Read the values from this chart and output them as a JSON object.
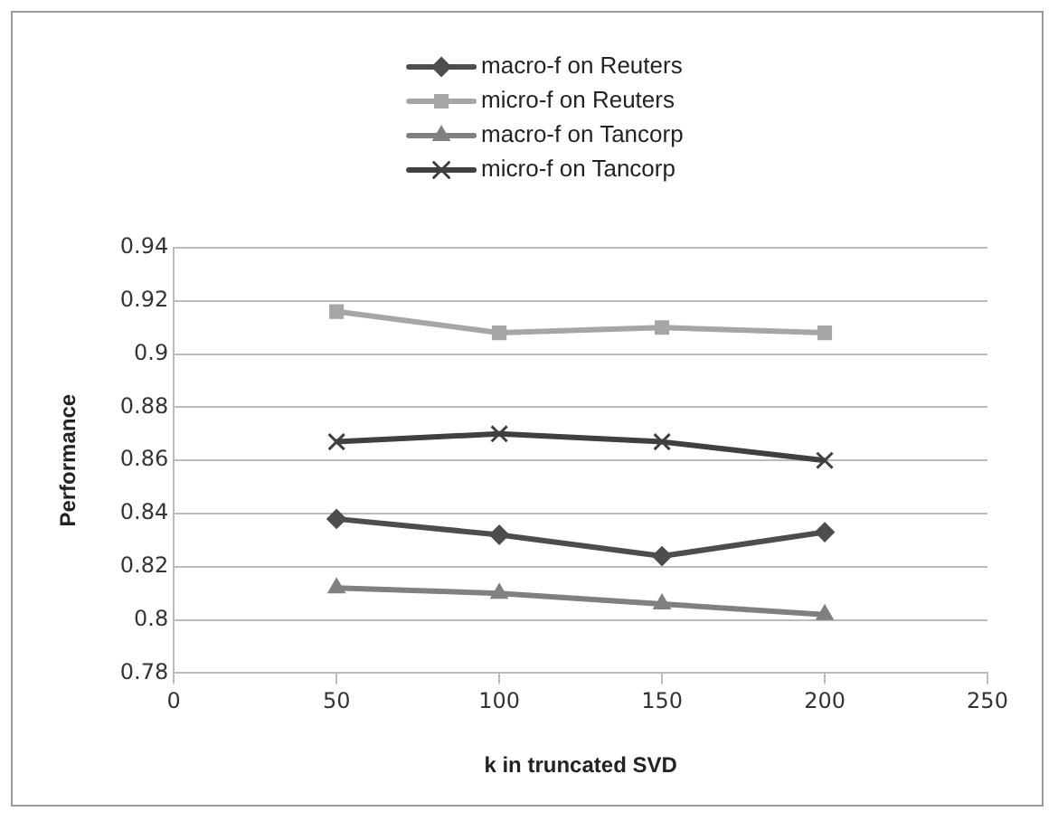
{
  "chart_data": {
    "type": "line",
    "xlabel": "k in truncated SVD",
    "ylabel": "Performance",
    "x": [
      50,
      100,
      150,
      200
    ],
    "series": [
      {
        "name": "macro-f on Reuters",
        "color": "#4d4d4d",
        "marker": "diamond",
        "values": [
          0.838,
          0.832,
          0.824,
          0.833
        ]
      },
      {
        "name": "micro-f on Reuters",
        "color": "#a6a6a6",
        "marker": "square",
        "values": [
          0.916,
          0.908,
          0.91,
          0.908
        ]
      },
      {
        "name": "macro-f on Tancorp",
        "color": "#808080",
        "marker": "triangle",
        "values": [
          0.812,
          0.81,
          0.806,
          0.802
        ]
      },
      {
        "name": "micro-f on Tancorp",
        "color": "#404040",
        "marker": "cross",
        "values": [
          0.867,
          0.87,
          0.867,
          0.86
        ]
      }
    ],
    "xlim": [
      0,
      250
    ],
    "xticks": [
      0,
      50,
      100,
      150,
      200,
      250
    ],
    "ylim": [
      0.78,
      0.94
    ],
    "yticks": [
      0.78,
      0.8,
      0.82,
      0.84,
      0.86,
      0.88,
      0.9,
      0.92,
      0.94
    ],
    "grid": "y",
    "legend": "top"
  }
}
